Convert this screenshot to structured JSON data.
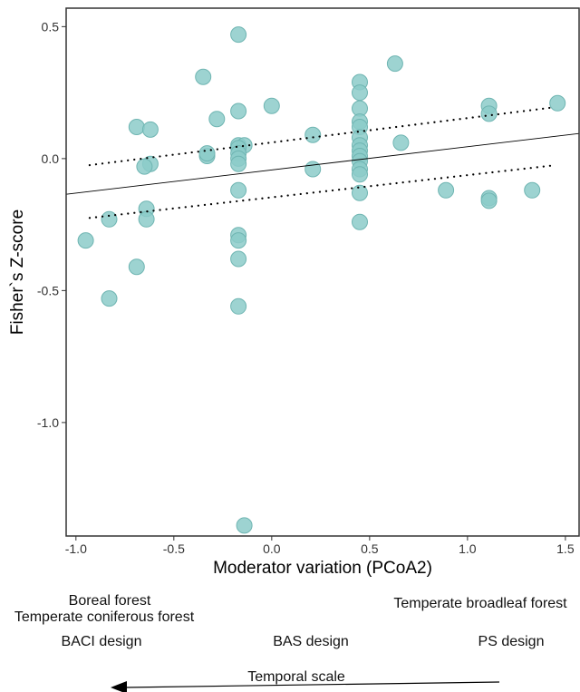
{
  "chart_data": {
    "type": "scatter",
    "xlabel": "Moderator variation (PCoA2)",
    "ylabel": "Fisher`s Z-score",
    "xlim": [
      -1.05,
      1.57
    ],
    "ylim": [
      -1.43,
      0.57
    ],
    "xticks": [
      -1.0,
      -0.5,
      0.0,
      0.5,
      1.0,
      1.5
    ],
    "xtick_labels": [
      "-1.0",
      "-0.5",
      "0.0",
      "0.5",
      "1.0",
      "1.5"
    ],
    "yticks": [
      -1.0,
      -0.5,
      0.0,
      0.5
    ],
    "ytick_labels": [
      "-1.0",
      "-0.5",
      "0.0",
      "0.5"
    ],
    "grid": false,
    "point_color": "#8ccbc9",
    "points": [
      {
        "x": -0.95,
        "y": -0.31
      },
      {
        "x": -0.83,
        "y": -0.23
      },
      {
        "x": -0.83,
        "y": -0.53
      },
      {
        "x": -0.69,
        "y": 0.12
      },
      {
        "x": -0.69,
        "y": -0.41
      },
      {
        "x": -0.62,
        "y": 0.11
      },
      {
        "x": -0.62,
        "y": -0.02
      },
      {
        "x": -0.65,
        "y": -0.03
      },
      {
        "x": -0.64,
        "y": -0.19
      },
      {
        "x": -0.64,
        "y": -0.23
      },
      {
        "x": -0.35,
        "y": 0.31
      },
      {
        "x": -0.28,
        "y": 0.15
      },
      {
        "x": -0.33,
        "y": 0.01
      },
      {
        "x": -0.33,
        "y": 0.02
      },
      {
        "x": -0.17,
        "y": 0.47
      },
      {
        "x": -0.17,
        "y": 0.18
      },
      {
        "x": -0.17,
        "y": 0.05
      },
      {
        "x": -0.14,
        "y": 0.05
      },
      {
        "x": -0.17,
        "y": 0.04
      },
      {
        "x": -0.17,
        "y": 0.02
      },
      {
        "x": -0.17,
        "y": 0.0
      },
      {
        "x": -0.17,
        "y": -0.02
      },
      {
        "x": -0.17,
        "y": -0.12
      },
      {
        "x": -0.17,
        "y": -0.29
      },
      {
        "x": -0.17,
        "y": -0.31
      },
      {
        "x": -0.17,
        "y": -0.38
      },
      {
        "x": -0.17,
        "y": -0.56
      },
      {
        "x": -0.14,
        "y": -1.39
      },
      {
        "x": 0.0,
        "y": 0.2
      },
      {
        "x": 0.21,
        "y": 0.09
      },
      {
        "x": 0.21,
        "y": -0.04
      },
      {
        "x": 0.45,
        "y": 0.29
      },
      {
        "x": 0.45,
        "y": 0.25
      },
      {
        "x": 0.45,
        "y": 0.19
      },
      {
        "x": 0.45,
        "y": 0.14
      },
      {
        "x": 0.45,
        "y": 0.12
      },
      {
        "x": 0.45,
        "y": 0.08
      },
      {
        "x": 0.45,
        "y": 0.05
      },
      {
        "x": 0.45,
        "y": 0.03
      },
      {
        "x": 0.45,
        "y": 0.01
      },
      {
        "x": 0.45,
        "y": -0.01
      },
      {
        "x": 0.45,
        "y": -0.04
      },
      {
        "x": 0.45,
        "y": -0.06
      },
      {
        "x": 0.45,
        "y": -0.13
      },
      {
        "x": 0.45,
        "y": -0.24
      },
      {
        "x": 0.63,
        "y": 0.36
      },
      {
        "x": 0.66,
        "y": 0.06
      },
      {
        "x": 0.89,
        "y": -0.12
      },
      {
        "x": 1.11,
        "y": 0.2
      },
      {
        "x": 1.11,
        "y": 0.17
      },
      {
        "x": 1.11,
        "y": -0.15
      },
      {
        "x": 1.11,
        "y": -0.16
      },
      {
        "x": 1.33,
        "y": -0.12
      },
      {
        "x": 1.46,
        "y": 0.21
      }
    ],
    "regression_line": {
      "x": [
        -1.05,
        1.57
      ],
      "y": [
        -0.135,
        0.095
      ],
      "color": "#000000"
    },
    "ci_upper": {
      "x": [
        -0.93,
        1.45
      ],
      "y": [
        -0.025,
        0.195
      ],
      "color": "#000000"
    },
    "ci_lower": {
      "x": [
        -0.93,
        1.45
      ],
      "y": [
        -0.225,
        -0.025
      ],
      "color": "#000000"
    }
  },
  "annotations": {
    "left_group_line1": "Boreal forest",
    "left_group_line2": "Temperate coniferous forest",
    "right_group": "Temperate broadleaf forest",
    "design_left": "BACI design",
    "design_middle": "BAS design",
    "design_right": "PS design",
    "arrow_label": "Temporal scale"
  }
}
